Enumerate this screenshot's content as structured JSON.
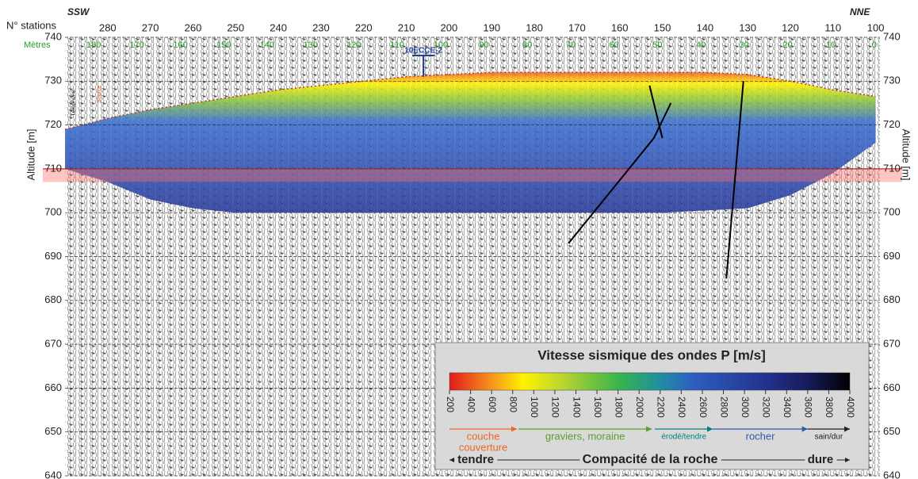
{
  "chart_data": {
    "type": "seismic-section",
    "x_label": "N° stations",
    "x2_label": "Mètres",
    "left_direction": "SSW",
    "right_direction": "NNE",
    "y_label": "Altitude [m]",
    "xlim": [
      290,
      99
    ],
    "xticks": [
      280,
      270,
      260,
      250,
      240,
      230,
      220,
      210,
      200,
      190,
      180,
      170,
      160,
      150,
      140,
      130,
      120,
      110,
      100
    ],
    "x2lim": [
      186.6,
      -1.3
    ],
    "x2ticks": [
      180,
      170,
      160,
      150,
      140,
      130,
      120,
      110,
      100,
      90,
      80,
      70,
      60,
      50,
      40,
      30,
      20,
      10,
      0
    ],
    "ylim": [
      640,
      740
    ],
    "yticks": [
      640,
      650,
      660,
      670,
      680,
      690,
      700,
      710,
      720,
      730,
      740
    ],
    "grid": true,
    "surface": {
      "x": [
        290,
        280,
        270,
        260,
        250,
        240,
        230,
        220,
        210,
        200,
        190,
        180,
        170,
        160,
        150,
        140,
        130,
        120,
        110,
        100
      ],
      "values": [
        719,
        721.5,
        723.5,
        725,
        726.5,
        728,
        729,
        730,
        731,
        731.5,
        732,
        732,
        732,
        732,
        732,
        732,
        731.5,
        730,
        728,
        726.5
      ]
    },
    "tomography_bottom": {
      "x": [
        290,
        280,
        270,
        260,
        250,
        200,
        150,
        130,
        120,
        110,
        100
      ],
      "values": [
        710,
        707,
        703,
        701,
        700,
        700,
        700,
        701,
        704,
        709,
        716
      ]
    },
    "highlight_band": [
      707,
      710
    ],
    "faults": [
      {
        "x": [
          148,
          152,
          172
        ],
        "values": [
          725,
          717,
          693
        ]
      },
      {
        "x": [
          153,
          150
        ],
        "values": [
          729,
          717
        ]
      },
      {
        "x": [
          131,
          135
        ],
        "values": [
          730,
          685
        ]
      }
    ],
    "borehole": {
      "label": "10ECCE-2",
      "x": 206
    },
    "annotations": [
      {
        "text": "Téléphone",
        "x": 288,
        "y": 722
      },
      {
        "text": "Source",
        "x": 282,
        "y": 725
      }
    ],
    "legend": {
      "title": "Vitesse sismique des ondes P [m/s]",
      "clim": [
        200,
        4000
      ],
      "ticks": [
        200,
        400,
        600,
        800,
        1000,
        1200,
        1400,
        1600,
        1800,
        2000,
        2200,
        2400,
        2600,
        2800,
        3000,
        3200,
        3400,
        3600,
        3800,
        4000
      ],
      "colorscale": [
        {
          "value": 200,
          "color": "#e31a1c"
        },
        {
          "value": 600,
          "color": "#f7941d"
        },
        {
          "value": 900,
          "color": "#fff200"
        },
        {
          "value": 1300,
          "color": "#b5d334"
        },
        {
          "value": 1800,
          "color": "#39b54a"
        },
        {
          "value": 2200,
          "color": "#1f8fa0"
        },
        {
          "value": 2500,
          "color": "#2e5fc0"
        },
        {
          "value": 3200,
          "color": "#24318f"
        },
        {
          "value": 3600,
          "color": "#161b5a"
        },
        {
          "value": 4000,
          "color": "#000000"
        }
      ],
      "zones": [
        {
          "label": [
            "couche",
            "couverture"
          ],
          "from": 200,
          "to": 840,
          "color": "#f26522"
        },
        {
          "label": [
            "graviers, moraine"
          ],
          "from": 855,
          "to": 2120,
          "color": "#5aa02c"
        },
        {
          "label": [
            "érodé/tendre"
          ],
          "from": 2150,
          "to": 2700,
          "color": "#00827f"
        },
        {
          "label": [
            "rocher"
          ],
          "from": 2700,
          "to": 3600,
          "color": "#2e5aa8"
        },
        {
          "label": [
            "sain/dur"
          ],
          "from": 3600,
          "to": 4000,
          "color": "#222222"
        }
      ],
      "scale_left": "tendre",
      "scale_title": "Compacité de la roche",
      "scale_right": "dure"
    }
  }
}
